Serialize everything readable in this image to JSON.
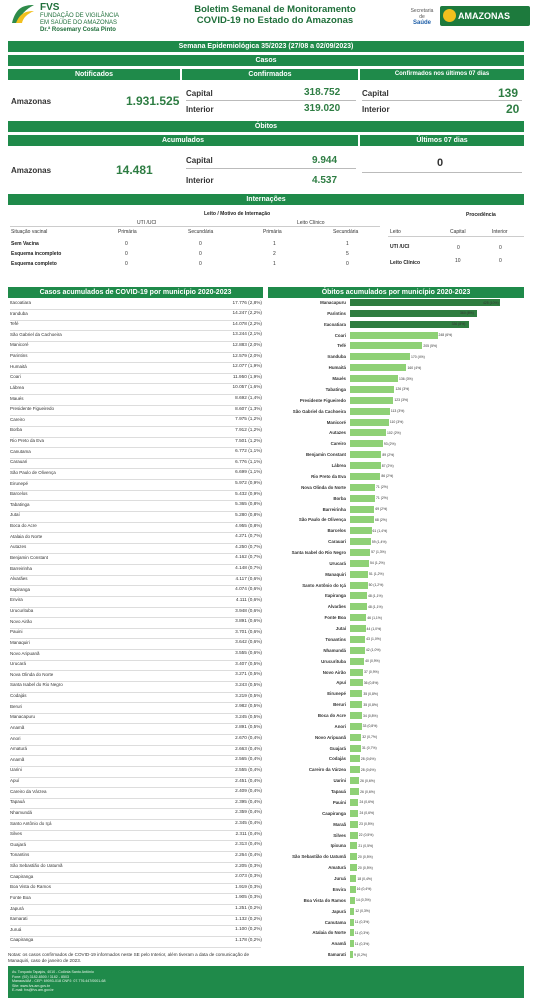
{
  "header": {
    "fvs": "FVS",
    "org1": "FUNDAÇÃO DE VIGILÂNCIA",
    "org2": "EM SAÚDE DO AMAZONAS",
    "org3": "Dr.ª Rosemary Costa Pinto",
    "title1": "Boletim Semanal de Monitoramento",
    "title2": "COVID-19 no Estado do Amazonas",
    "gov1": "Secretaria de",
    "gov2": "Saúde",
    "state": "AMAZONAS"
  },
  "week": "Semana Epidemiológica 35/2023 (27/08 a 02/09/2023)",
  "casos": {
    "title": "Casos",
    "notificados": "Notificados",
    "confirmados": "Confirmados",
    "ultimos": "Confirmados nos últimos 07 dias",
    "region": "Amazonas",
    "notificados_val": "1.931.525",
    "capital": "Capital",
    "capital_val": "318.752",
    "interior": "Interior",
    "interior_val": "319.020",
    "u_capital": "Capital",
    "u_capital_val": "139",
    "u_interior": "Interior",
    "u_interior_val": "20"
  },
  "obitos": {
    "title": "Óbitos",
    "acumulados": "Acumulados",
    "ultimos": "Últimos 07 dias",
    "region": "Amazonas",
    "total": "14.481",
    "capital": "Capital",
    "capital_val": "9.944",
    "interior": "Interior",
    "interior_val": "4.537",
    "ultimos_val": "0"
  },
  "intern": {
    "title": "Internações",
    "leito_title": "Leito / Motivo de Internação",
    "uti": "UTI /UCI",
    "clinico": "Leito Clínico",
    "situacao": "Situação vacinal",
    "primaria": "Primária",
    "secundaria": "Secundária",
    "rows": [
      {
        "label": "Sem Vacina",
        "v": [
          "0",
          "0",
          "1",
          "1"
        ]
      },
      {
        "label": "Esquema incompleto",
        "v": [
          "0",
          "0",
          "2",
          "5"
        ]
      },
      {
        "label": "Esquema completo",
        "v": [
          "0",
          "0",
          "1",
          "0"
        ]
      }
    ],
    "procedencia": "Procedência",
    "leito": "Leito",
    "capital": "Capital",
    "interior": "Interior",
    "p_uti": "UTI /UCI",
    "p_uti_v": [
      "0",
      "0"
    ],
    "p_clin": "Leito Clínico",
    "p_clin_v": [
      "10",
      "0"
    ]
  },
  "left_title": "Casos acumulados de COVID-19 por município 2020-2023",
  "right_title": "Óbitos acumulados por município 2020-2023",
  "casos_mun": [
    [
      "Itacoatiara",
      "17.776 (2,8%)"
    ],
    [
      "Iranduba",
      "14.247 (2,2%)"
    ],
    [
      "Tefé",
      "14.078 (2,2%)"
    ],
    [
      "São Gabriel da Cachoeira",
      "13.244 (2,1%)"
    ],
    [
      "Manicoré",
      "12.883 (2,0%)"
    ],
    [
      "Parintins",
      "12.579 (2,0%)"
    ],
    [
      "Humaitá",
      "12.077 (1,9%)"
    ],
    [
      "Coari",
      "11.950 (1,9%)"
    ],
    [
      "Lábrea",
      "10.057 (1,6%)"
    ],
    [
      "Maués",
      "8.692 (1,4%)"
    ],
    [
      "Presidente Figueiredo",
      "8.607 (1,3%)"
    ],
    [
      "Careiro",
      "7.975 (1,2%)"
    ],
    [
      "Borba",
      "7.912 (1,2%)"
    ],
    [
      "Rio Preto da Eva",
      "7.501 (1,2%)"
    ],
    [
      "Canutama",
      "6.772 (1,1%)"
    ],
    [
      "Carauari",
      "6.776 (1,1%)"
    ],
    [
      "São Paulo de Olivença",
      "6.699 (1,1%)"
    ],
    [
      "Eirunepé",
      "5.972 (0,9%)"
    ],
    [
      "Barcelos",
      "5.432 (0,9%)"
    ],
    [
      "Tabatinga",
      "5.365 (0,8%)"
    ],
    [
      "Jutaí",
      "5.280 (0,8%)"
    ],
    [
      "Boca do Acre",
      "4.955 (0,8%)"
    ],
    [
      "Atalaia do Norte",
      "4.271 (0,7%)"
    ],
    [
      "Autazes",
      "4.250 (0,7%)"
    ],
    [
      "Benjamin Constant",
      "4.162 (0,7%)"
    ],
    [
      "Barreirinha",
      "4.148 (0,7%)"
    ],
    [
      "Alvarães",
      "4.117 (0,6%)"
    ],
    [
      "Itapiranga",
      "4.074 (0,6%)"
    ],
    [
      "Envira",
      "4.111 (0,6%)"
    ],
    [
      "Urucurituba",
      "3.948 (0,6%)"
    ],
    [
      "Novo Airão",
      "3.891 (0,6%)"
    ],
    [
      "Pauini",
      "3.701 (0,6%)"
    ],
    [
      "Manaquiri",
      "3.642 (0,6%)"
    ],
    [
      "Novo Aripuanã",
      "3.555 (0,6%)"
    ],
    [
      "Urucará",
      "3.407 (0,5%)"
    ],
    [
      "Nova Olinda do Norte",
      "3.271 (0,5%)"
    ],
    [
      "Santa Isabel do Rio Negro",
      "3.243 (0,5%)"
    ],
    [
      "Codajás",
      "3.219 (0,5%)"
    ],
    [
      "Beruri",
      "2.982 (0,5%)"
    ],
    [
      "Manacapuru",
      "3.245 (0,5%)"
    ],
    [
      "Anamã",
      "2.891 (0,5%)"
    ],
    [
      "Anori",
      "2.670 (0,4%)"
    ],
    [
      "Amaturá",
      "2.663 (0,4%)"
    ],
    [
      "Anamã",
      "2.565 (0,4%)"
    ],
    [
      "Uarini",
      "2.555 (0,4%)"
    ],
    [
      "Apuí",
      "2.451 (0,4%)"
    ],
    [
      "Careiro da Várzea",
      "2.409 (0,4%)"
    ],
    [
      "Tapauá",
      "2.395 (0,4%)"
    ],
    [
      "Nhamundá",
      "2.359 (0,4%)"
    ],
    [
      "Santo Antônio do Içá",
      "2.345 (0,4%)"
    ],
    [
      "Silves",
      "2.311 (0,4%)"
    ],
    [
      "Guajará",
      "2.313 (0,4%)"
    ],
    [
      "Tonantins",
      "2.264 (0,4%)"
    ],
    [
      "São Sebastião do Uatumã",
      "2.205 (0,3%)"
    ],
    [
      "Caapiranga",
      "2.073 (0,3%)"
    ],
    [
      "Boa Vista do Ramos",
      "1.919 (0,3%)"
    ],
    [
      "Fonte Boa",
      "1.905 (0,3%)"
    ],
    [
      "Japurá",
      "1.251 (0,2%)"
    ],
    [
      "Itamarati",
      "1.132 (0,2%)"
    ],
    [
      "Juruá",
      "1.100 (0,2%)"
    ],
    [
      "Caapiranga",
      "1.178 (0,2%)"
    ]
  ],
  "obitos_mun": [
    [
      "Manacapuru",
      "425 (10%)",
      425
    ],
    [
      "Parintins",
      "360 (8%)",
      360
    ],
    [
      "Itacoatiara",
      "336 (8%)",
      336
    ],
    [
      "Coari",
      "248 (6%)",
      248
    ],
    [
      "Tefé",
      "205 (5%)",
      205
    ],
    [
      "Iranduba",
      "170 (4%)",
      170
    ],
    [
      "Humaitá",
      "160 (4%)",
      160
    ],
    [
      "Maués",
      "136 (3%)",
      136
    ],
    [
      "Tabatinga",
      "126 (3%)",
      126
    ],
    [
      "Presidente Figueiredo",
      "123 (3%)",
      123
    ],
    [
      "São Gabriel da Cachoeira",
      "113 (3%)",
      113
    ],
    [
      "Manicoré",
      "110 (3%)",
      110
    ],
    [
      "Autazes",
      "102 (2%)",
      102
    ],
    [
      "Careiro",
      "93 (2%)",
      93
    ],
    [
      "Benjamin Constant",
      "89 (2%)",
      89
    ],
    [
      "Lábrea",
      "87 (2%)",
      87
    ],
    [
      "Rio Preto da Eva",
      "86 (2%)",
      86
    ],
    [
      "Nova Olinda do Norte",
      "71 (2%)",
      71
    ],
    [
      "Borba",
      "71 (2%)",
      71
    ],
    [
      "Barreirinha",
      "69 (2%)",
      69
    ],
    [
      "São Paulo de Olivença",
      "68 (2%)",
      68
    ],
    [
      "Barcelos",
      "61 (1,4%)",
      61
    ],
    [
      "Carauari",
      "59 (1,4%)",
      59
    ],
    [
      "Santa Isabel do Rio Negro",
      "57 (1,3%)",
      57
    ],
    [
      "Urucará",
      "54 (1,2%)",
      54
    ],
    [
      "Manaquiri",
      "51 (1,2%)",
      51
    ],
    [
      "Santo Antônio do Içá",
      "50 (1,2%)",
      50
    ],
    [
      "Itapiranga",
      "48 (1,1%)",
      48
    ],
    [
      "Alvarães",
      "48 (1,1%)",
      48
    ],
    [
      "Fonte Boa",
      "46 (1,1%)",
      46
    ],
    [
      "Jutaí",
      "44 (1,0%)",
      44
    ],
    [
      "Tonantins",
      "43 (1,0%)",
      43
    ],
    [
      "Nhamundá",
      "42 (1,0%)",
      42
    ],
    [
      "Urucurituba",
      "40 (0,9%)",
      40
    ],
    [
      "Novo Airão",
      "37 (0,9%)",
      37
    ],
    [
      "Apuí",
      "36 (0,8%)",
      36
    ],
    [
      "Eirunepé",
      "35 (0,8%)",
      35
    ],
    [
      "Beruri",
      "35 (0,8%)",
      35
    ],
    [
      "Boca do Acre",
      "34 (0,8%)",
      34
    ],
    [
      "Anori",
      "33 (0,8%)",
      33
    ],
    [
      "Novo Aripuanã",
      "32 (0,7%)",
      32
    ],
    [
      "Guajará",
      "31 (0,7%)",
      31
    ],
    [
      "Codajás",
      "28 (0,6%)",
      28
    ],
    [
      "Careiro da Várzea",
      "28 (0,6%)",
      28
    ],
    [
      "Uarini",
      "26 (0,6%)",
      26
    ],
    [
      "Tapauá",
      "26 (0,6%)",
      26
    ],
    [
      "Pauini",
      "24 (0,6%)",
      24
    ],
    [
      "Caapiranga",
      "24 (0,6%)",
      24
    ],
    [
      "Maraã",
      "23 (0,5%)",
      23
    ],
    [
      "Silves",
      "22 (0,5%)",
      22
    ],
    [
      "Ipixuna",
      "21 (0,5%)",
      21
    ],
    [
      "São Sebastião do Uatumã",
      "20 (0,5%)",
      20
    ],
    [
      "Amaturá",
      "20 (0,5%)",
      20
    ],
    [
      "Juruá",
      "18 (0,4%)",
      18
    ],
    [
      "Envira",
      "16 (0,4%)",
      16
    ],
    [
      "Boa Vista do Ramos",
      "14 (0,3%)",
      14
    ],
    [
      "Japurá",
      "12 (0,3%)",
      12
    ],
    [
      "Canutama",
      "11 (0,3%)",
      11
    ],
    [
      "Atalaia do Norte",
      "11 (0,3%)",
      11
    ],
    [
      "Anamã",
      "11 (0,3%)",
      11
    ],
    [
      "Itamarati",
      "9 (0,2%)",
      9
    ]
  ],
  "note1": "Notas: os casos confirmados de COVID-19 informados neste SE pelo Interior, além tiveram a data de comunicação de",
  "note2": "Manaquiri, caso de janeiro de 2023.",
  "footer": [
    "Av. Torquato Tapajós, 4010 - Colônia Santo Antônio",
    "Fone: (92) 3182-8500 / 3182 - 8503",
    "Manaus/AM - CEP: 69093-018 CNPJ: 07.776.447/0001-68",
    "Site: www.fvs.am.gov.br",
    "E-mail: fvs@fvs.am.gov.br"
  ]
}
